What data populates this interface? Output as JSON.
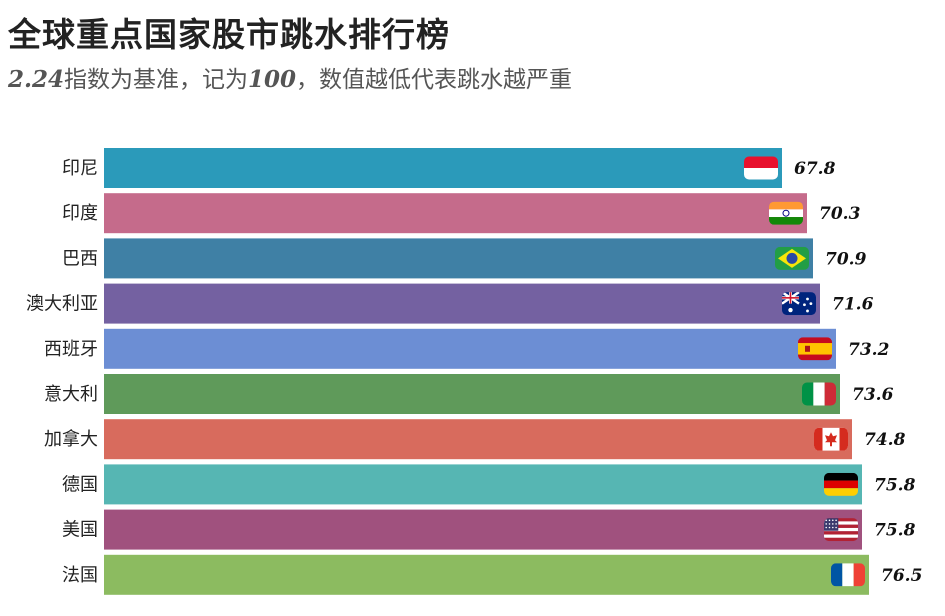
{
  "chart_data": {
    "type": "bar",
    "orientation": "horizontal",
    "title": "全球重点国家股市跳水排行榜",
    "subtitle": {
      "prefix": "2.24",
      "mid": "指数为基准，记为",
      "num": "100",
      "suffix": "，数值越低代表跳水越严重"
    },
    "categories": [
      "印尼",
      "印度",
      "巴西",
      "澳大利亚",
      "西班牙",
      "意大利",
      "加拿大",
      "德国",
      "美国",
      "法国"
    ],
    "values": [
      67.8,
      70.3,
      70.9,
      71.6,
      73.2,
      73.6,
      74.8,
      75.8,
      75.8,
      76.5
    ],
    "value_labels": [
      "67.8",
      "70.3",
      "70.9",
      "71.6",
      "73.2",
      "73.6",
      "74.8",
      "75.8",
      "75.8",
      "76.5"
    ],
    "colors": [
      "#2b9aba",
      "#c56b8b",
      "#3f80a5",
      "#7461a1",
      "#6c8ed4",
      "#5f9a5a",
      "#d86b5d",
      "#56b6b3",
      "#a0517e",
      "#8cbb60"
    ],
    "flags": [
      "indonesia-flag",
      "india-flag",
      "brazil-flag",
      "australia-flag",
      "spain-flag",
      "italy-flag",
      "canada-flag",
      "germany-flag",
      "usa-flag",
      "france-flag"
    ],
    "xlim": [
      0,
      76.5
    ],
    "grid": false,
    "legend": "none"
  }
}
